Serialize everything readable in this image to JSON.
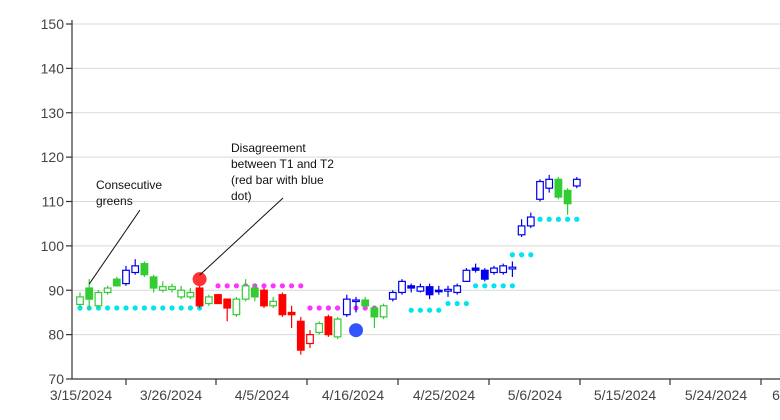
{
  "chart_data": {
    "type": "candlestick",
    "ylim": [
      70,
      150
    ],
    "yticks": [
      70,
      80,
      90,
      100,
      110,
      120,
      130,
      140,
      150
    ],
    "xticks": [
      "3/15/2024",
      "3/26/2024",
      "4/5/2024",
      "4/16/2024",
      "4/25/2024",
      "5/6/2024",
      "5/15/2024",
      "5/24/2024",
      "6"
    ],
    "grid": true,
    "legend": "none",
    "colors": {
      "green_up": "#33cc33",
      "green_down": "#33cc33",
      "red": "#ff0000",
      "blue": "#0000ee",
      "t1_dots_cyan": "#00e5ee",
      "t2_dots_magenta": "#ff33ff",
      "marker_red": "#ff3333",
      "marker_blue": "#3355ff"
    },
    "candles": [
      {
        "x": 0,
        "color": "green",
        "filled": false,
        "open": 86.8,
        "close": 88.5,
        "low": 86.2,
        "high": 89.5
      },
      {
        "x": 1,
        "color": "green",
        "filled": true,
        "open": 88.0,
        "close": 90.5,
        "low": 85.5,
        "high": 92.5
      },
      {
        "x": 2,
        "color": "green",
        "filled": false,
        "open": 86.5,
        "close": 89.5,
        "low": 86.0,
        "high": 90.0
      },
      {
        "x": 3,
        "color": "green",
        "filled": false,
        "open": 89.5,
        "close": 90.5,
        "low": 89.0,
        "high": 91.0
      },
      {
        "x": 4,
        "color": "green",
        "filled": true,
        "open": 91.0,
        "close": 92.5,
        "low": 90.8,
        "high": 93.0
      },
      {
        "x": 5,
        "color": "blue",
        "filled": false,
        "open": 91.5,
        "close": 94.5,
        "low": 91.0,
        "high": 95.5
      },
      {
        "x": 6,
        "color": "blue",
        "filled": false,
        "open": 94.0,
        "close": 95.5,
        "low": 93.5,
        "high": 97.0
      },
      {
        "x": 7,
        "color": "green",
        "filled": true,
        "open": 96.0,
        "close": 93.5,
        "low": 93.0,
        "high": 96.5
      },
      {
        "x": 8,
        "color": "green",
        "filled": true,
        "open": 93.0,
        "close": 90.5,
        "low": 89.5,
        "high": 93.5
      },
      {
        "x": 9,
        "color": "green",
        "filled": false,
        "open": 90.0,
        "close": 90.8,
        "low": 89.5,
        "high": 92.0
      },
      {
        "x": 10,
        "color": "green",
        "filled": false,
        "open": 90.2,
        "close": 90.8,
        "low": 89.5,
        "high": 91.5
      },
      {
        "x": 11,
        "color": "green",
        "filled": false,
        "open": 88.5,
        "close": 90.0,
        "low": 88.0,
        "high": 91.0
      },
      {
        "x": 12,
        "color": "green",
        "filled": false,
        "open": 88.5,
        "close": 89.5,
        "low": 88.0,
        "high": 90.5
      },
      {
        "x": 13,
        "color": "red",
        "filled": true,
        "open": 90.5,
        "close": 86.5,
        "low": 86.0,
        "high": 92.0
      },
      {
        "x": 14,
        "color": "green",
        "filled": false,
        "open": 87.0,
        "close": 88.5,
        "low": 86.5,
        "high": 89.0
      },
      {
        "x": 15,
        "color": "red",
        "filled": true,
        "open": 89.0,
        "close": 87.0,
        "low": 87.0,
        "high": 89.0
      },
      {
        "x": 16,
        "color": "red",
        "filled": true,
        "open": 88.0,
        "close": 86.0,
        "low": 83.0,
        "high": 88.0
      },
      {
        "x": 17,
        "color": "green",
        "filled": false,
        "open": 84.5,
        "close": 88.0,
        "low": 84.0,
        "high": 88.5
      },
      {
        "x": 18,
        "color": "green",
        "filled": false,
        "open": 88.0,
        "close": 91.0,
        "low": 87.5,
        "high": 92.5
      },
      {
        "x": 19,
        "color": "green",
        "filled": true,
        "open": 90.5,
        "close": 88.5,
        "low": 87.5,
        "high": 91.5
      },
      {
        "x": 20,
        "color": "red",
        "filled": true,
        "open": 90.0,
        "close": 86.5,
        "low": 86.0,
        "high": 90.5
      },
      {
        "x": 21,
        "color": "green",
        "filled": false,
        "open": 86.5,
        "close": 87.5,
        "low": 86.0,
        "high": 88.5
      },
      {
        "x": 22,
        "color": "red",
        "filled": true,
        "open": 89.0,
        "close": 84.5,
        "low": 84.0,
        "high": 89.5
      },
      {
        "x": 23,
        "color": "red",
        "filled": true,
        "open": 85.0,
        "close": 84.5,
        "low": 81.5,
        "high": 86.5
      },
      {
        "x": 24,
        "color": "red",
        "filled": true,
        "open": 83.0,
        "close": 76.5,
        "low": 75.5,
        "high": 84.0
      },
      {
        "x": 25,
        "color": "red",
        "filled": false,
        "open": 78.0,
        "close": 80.0,
        "low": 77.0,
        "high": 81.0
      },
      {
        "x": 26,
        "color": "green",
        "filled": false,
        "open": 80.5,
        "close": 82.5,
        "low": 80.0,
        "high": 83.0
      },
      {
        "x": 27,
        "color": "red",
        "filled": true,
        "open": 84.0,
        "close": 80.0,
        "low": 79.5,
        "high": 84.5
      },
      {
        "x": 28,
        "color": "green",
        "filled": false,
        "open": 79.5,
        "close": 83.5,
        "low": 79.0,
        "high": 84.0
      },
      {
        "x": 29,
        "color": "blue",
        "filled": false,
        "open": 84.5,
        "close": 88.0,
        "low": 84.0,
        "high": 89.0
      },
      {
        "x": 30,
        "color": "blue",
        "filled": false,
        "open": 87.5,
        "close": 87.8,
        "low": 85.0,
        "high": 88.5
      },
      {
        "x": 31,
        "color": "green",
        "filled": true,
        "open": 87.8,
        "close": 86.5,
        "low": 86.0,
        "high": 88.5
      },
      {
        "x": 32,
        "color": "green",
        "filled": true,
        "open": 86.0,
        "close": 84.0,
        "low": 81.5,
        "high": 86.5
      },
      {
        "x": 33,
        "color": "green",
        "filled": false,
        "open": 84.0,
        "close": 86.5,
        "low": 83.5,
        "high": 87.0
      },
      {
        "x": 34,
        "color": "blue",
        "filled": false,
        "open": 88.0,
        "close": 89.5,
        "low": 87.5,
        "high": 90.0
      },
      {
        "x": 35,
        "color": "blue",
        "filled": false,
        "open": 89.5,
        "close": 92.0,
        "low": 89.0,
        "high": 92.5
      },
      {
        "x": 36,
        "color": "blue",
        "filled": true,
        "open": 91.0,
        "close": 90.5,
        "low": 89.5,
        "high": 91.5
      },
      {
        "x": 37,
        "color": "blue",
        "filled": false,
        "open": 89.8,
        "close": 90.8,
        "low": 89.5,
        "high": 91.5
      },
      {
        "x": 38,
        "color": "blue",
        "filled": true,
        "open": 90.8,
        "close": 89.0,
        "low": 88.0,
        "high": 91.5
      },
      {
        "x": 39,
        "color": "blue",
        "filled": true,
        "open": 90.0,
        "close": 89.8,
        "low": 89.0,
        "high": 91.0
      },
      {
        "x": 40,
        "color": "blue",
        "filled": false,
        "open": 89.8,
        "close": 90.2,
        "low": 88.5,
        "high": 91.0
      },
      {
        "x": 41,
        "color": "blue",
        "filled": false,
        "open": 89.5,
        "close": 91.0,
        "low": 89.0,
        "high": 91.5
      },
      {
        "x": 42,
        "color": "blue",
        "filled": false,
        "open": 92.0,
        "close": 94.5,
        "low": 92.0,
        "high": 95.0
      },
      {
        "x": 43,
        "color": "blue",
        "filled": true,
        "open": 95.0,
        "close": 94.5,
        "low": 94.0,
        "high": 96.0
      },
      {
        "x": 44,
        "color": "blue",
        "filled": true,
        "open": 94.5,
        "close": 92.5,
        "low": 92.0,
        "high": 95.0
      },
      {
        "x": 45,
        "color": "blue",
        "filled": false,
        "open": 94.0,
        "close": 95.0,
        "low": 93.5,
        "high": 95.5
      },
      {
        "x": 46,
        "color": "blue",
        "filled": false,
        "open": 94.0,
        "close": 95.5,
        "low": 93.5,
        "high": 96.0
      },
      {
        "x": 47,
        "color": "blue",
        "filled": false,
        "open": 94.8,
        "close": 95.2,
        "low": 93.0,
        "high": 96.5
      },
      {
        "x": 48,
        "color": "blue",
        "filled": false,
        "open": 102.5,
        "close": 104.5,
        "low": 102.0,
        "high": 106.0
      },
      {
        "x": 49,
        "color": "blue",
        "filled": false,
        "open": 104.5,
        "close": 106.5,
        "low": 104.0,
        "high": 107.5
      },
      {
        "x": 50,
        "color": "blue",
        "filled": false,
        "open": 110.5,
        "close": 114.5,
        "low": 110.0,
        "high": 115.0
      },
      {
        "x": 51,
        "color": "blue",
        "filled": false,
        "open": 113.0,
        "close": 115.0,
        "low": 112.0,
        "high": 116.0
      },
      {
        "x": 52,
        "color": "green",
        "filled": true,
        "open": 115.0,
        "close": 111.0,
        "low": 110.5,
        "high": 115.5
      },
      {
        "x": 53,
        "color": "green",
        "filled": true,
        "open": 112.5,
        "close": 109.5,
        "low": 107.0,
        "high": 113.0
      },
      {
        "x": 54,
        "color": "blue",
        "filled": false,
        "open": 113.5,
        "close": 115.0,
        "low": 113.0,
        "high": 115.5
      }
    ],
    "dots_t1": [
      {
        "x_from": 0,
        "x_to": 13,
        "y": 86.0
      },
      {
        "x_from": 27,
        "x_to": 28,
        "y": 86.0
      },
      {
        "x_from": 36,
        "x_to": 39,
        "y": 85.5
      },
      {
        "x_from": 40,
        "x_to": 42,
        "y": 87.0
      },
      {
        "x_from": 43,
        "x_to": 47,
        "y": 91.0
      },
      {
        "x_from": 47,
        "x_to": 49,
        "y": 98.0
      },
      {
        "x_from": 49,
        "x_to": 54,
        "y": 106.0
      }
    ],
    "dots_t2": [
      {
        "x_from": 15,
        "x_to": 24,
        "y": 91.0
      },
      {
        "x_from": 25,
        "x_to": 30,
        "y": 86.0
      },
      {
        "x_from": 31,
        "x_to": 33,
        "y": 86.0
      }
    ],
    "markers": [
      {
        "x": 13,
        "y": 92.5,
        "color": "red"
      },
      {
        "x": 30,
        "y": 81.0,
        "color": "blue"
      }
    ],
    "annotations": [
      {
        "id": "consecutive-greens",
        "lines": [
          "Consecutive",
          "greens"
        ],
        "pointer_to": {
          "x": 1,
          "y": 90.5
        }
      },
      {
        "id": "disagreement",
        "lines": [
          "Disagreement",
          "between T1 and T2",
          "(red bar with blue",
          "dot)"
        ],
        "pointer_to": {
          "x": 13,
          "y": 92.5
        }
      }
    ]
  }
}
